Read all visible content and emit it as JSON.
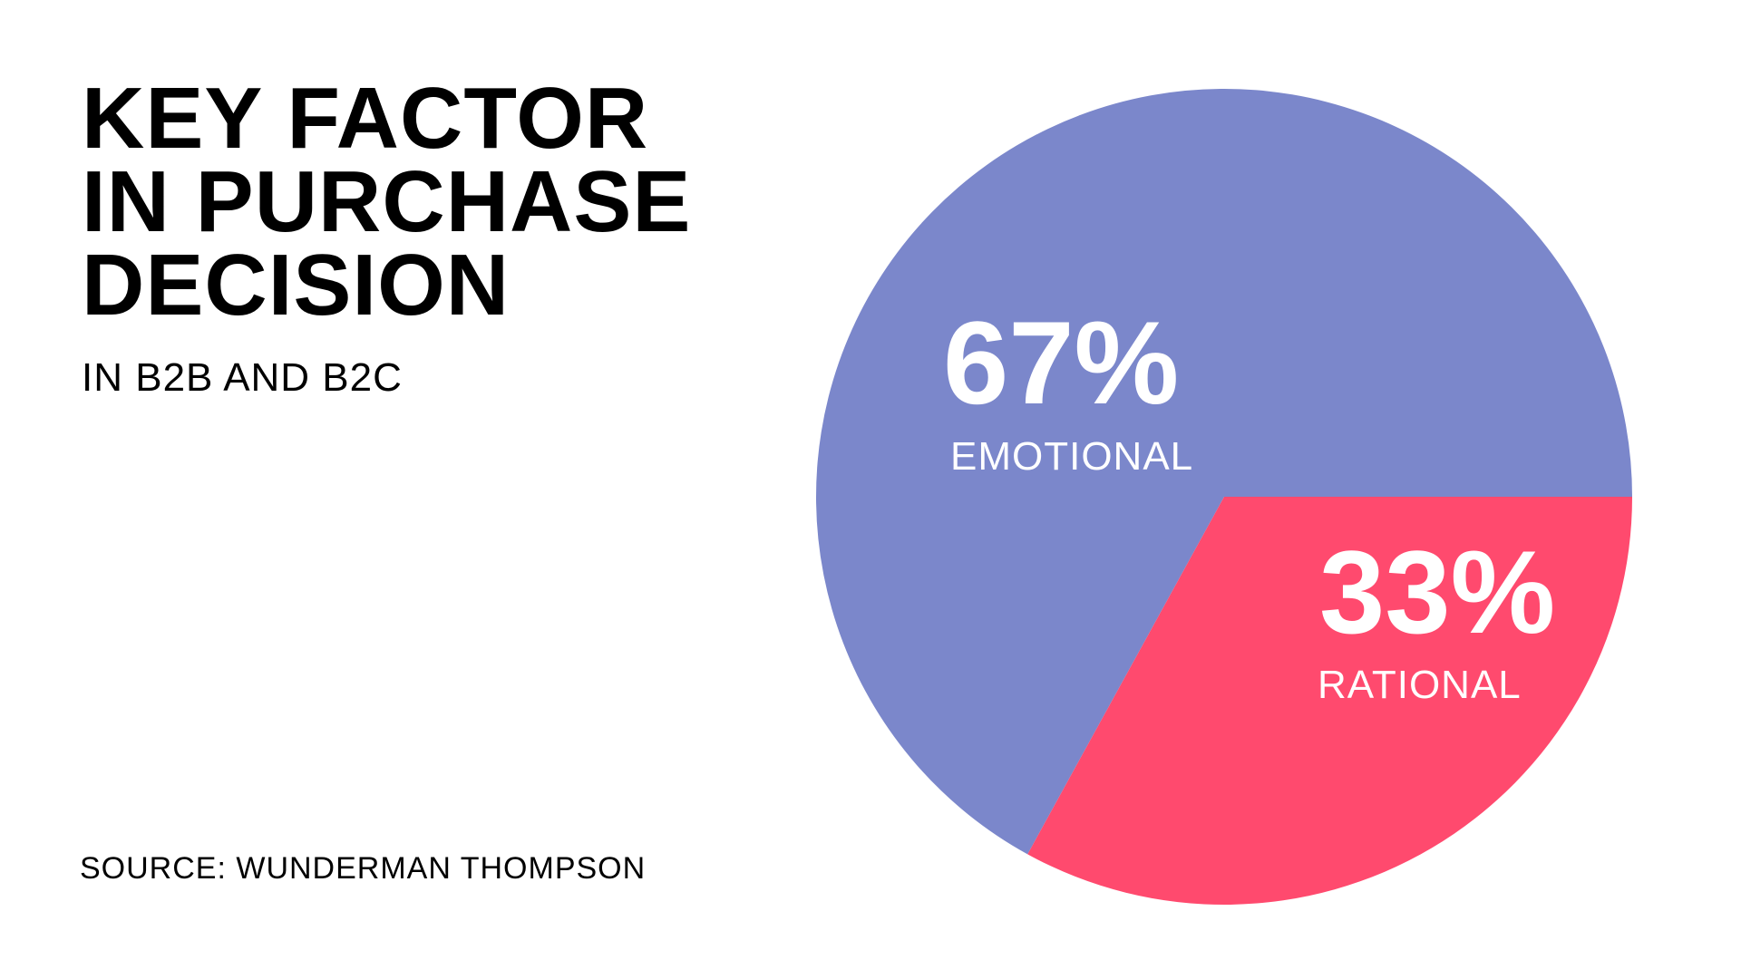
{
  "chart_data": {
    "type": "pie",
    "title": "KEY FACTOR IN PURCHASE DECISION",
    "title_lines": [
      "KEY FACTOR",
      "IN PURCHASE",
      "DECISION"
    ],
    "subtitle": "IN B2B AND B2C",
    "source": "SOURCE: WUNDERMAN THOMPSON",
    "categories": [
      "EMOTIONAL",
      "RATIONAL"
    ],
    "values": [
      67,
      33
    ],
    "value_labels": [
      "67%",
      "33%"
    ],
    "colors": [
      "#7b87cb",
      "#ff4a6e"
    ]
  }
}
